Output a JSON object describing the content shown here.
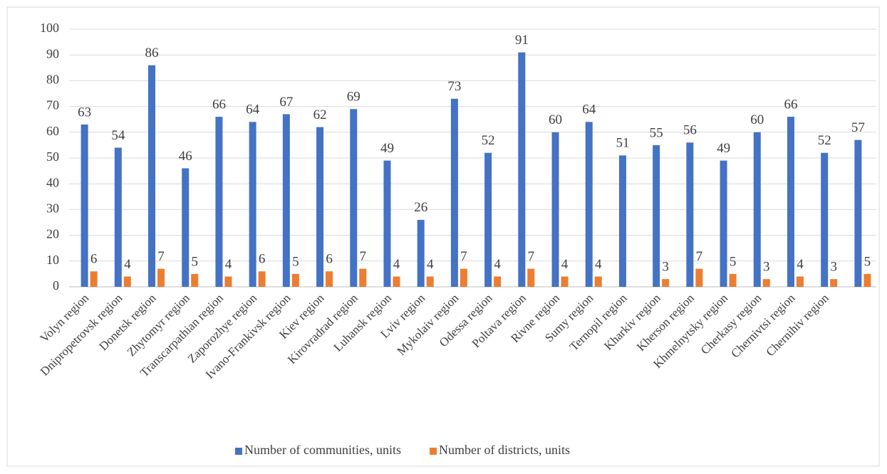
{
  "chart_data": {
    "type": "bar",
    "categories": [
      "Volyn region",
      "Dnipropetrovsk region",
      "Donetsk region",
      "Zhytomyr region",
      "Transcarpathian region",
      "Zaporozhye region",
      "Ivano-Frankivsk region",
      "Kiev region",
      "Kirovradrad region",
      "Luhansk region",
      "Lviv region",
      "Mykolaiv region",
      "Odessa region",
      "Poltava region",
      "Rivne region",
      "Sumy region",
      "Ternopil region",
      "Kharkiv region",
      "Kherson region",
      "Khmelnytsky region",
      "Cherkasy region",
      "Chernivtsi region",
      "Chernihiv region",
      null
    ],
    "series": [
      {
        "name": "Number of communities, units",
        "color": "#4472c4",
        "values": [
          63,
          54,
          86,
          46,
          66,
          64,
          67,
          62,
          69,
          49,
          26,
          73,
          52,
          91,
          60,
          64,
          51,
          55,
          56,
          49,
          60,
          66,
          52,
          57
        ]
      },
      {
        "name": "Number of districts, units",
        "color": "#ed7d31",
        "values": [
          6,
          4,
          7,
          5,
          4,
          6,
          5,
          6,
          7,
          4,
          4,
          7,
          4,
          7,
          4,
          4,
          null,
          3,
          7,
          5,
          3,
          4,
          3,
          5
        ]
      }
    ],
    "ylim": [
      0,
      100
    ],
    "yticks": [
      0,
      10,
      20,
      30,
      40,
      50,
      60,
      70,
      80,
      90,
      100
    ],
    "grid": true,
    "legend": "bottom"
  }
}
